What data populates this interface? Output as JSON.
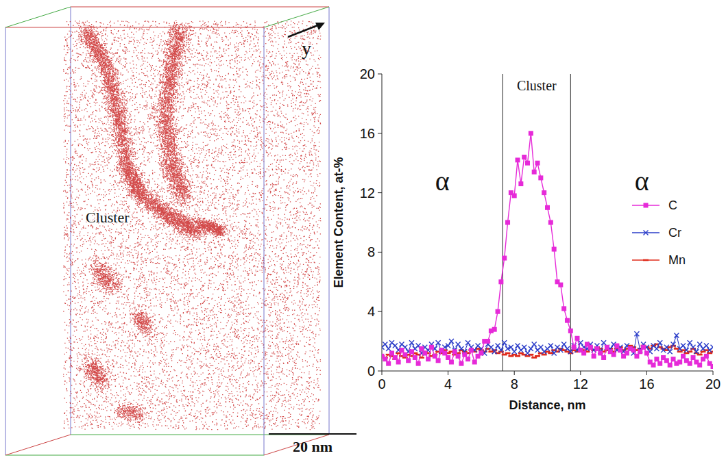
{
  "chart_data": {
    "type": "line",
    "x_label": "Distance, nm",
    "y_label": "Element Content, at-%",
    "x": [
      0,
      0.2,
      0.4,
      0.6,
      0.8,
      1,
      1.2,
      1.4,
      1.6,
      1.8,
      2,
      2.2,
      2.4,
      2.6,
      2.8,
      3,
      3.2,
      3.4,
      3.6,
      3.8,
      4,
      4.2,
      4.4,
      4.6,
      4.8,
      5,
      5.2,
      5.4,
      5.6,
      5.8,
      6,
      6.2,
      6.4,
      6.6,
      6.8,
      7,
      7.2,
      7.4,
      7.6,
      7.8,
      8,
      8.2,
      8.4,
      8.6,
      8.8,
      9,
      9.2,
      9.4,
      9.6,
      9.8,
      10,
      10.2,
      10.4,
      10.6,
      10.8,
      11,
      11.2,
      11.4,
      11.6,
      11.8,
      12,
      12.2,
      12.4,
      12.6,
      12.8,
      13,
      13.2,
      13.4,
      13.6,
      13.8,
      14,
      14.2,
      14.4,
      14.6,
      14.8,
      15,
      15.2,
      15.4,
      15.6,
      15.8,
      16,
      16.2,
      16.4,
      16.6,
      16.8,
      17,
      17.2,
      17.4,
      17.6,
      17.8,
      18,
      18.2,
      18.4,
      18.6,
      18.8,
      19,
      19.2,
      19.4,
      19.6,
      19.8,
      20
    ],
    "series": [
      {
        "name": "C",
        "color": "#e62ad8",
        "marker": "square",
        "values": [
          1.0,
          0.8,
          0.5,
          1.2,
          0.9,
          0.6,
          1.4,
          1.1,
          0.7,
          1.3,
          0.9,
          0.5,
          1.5,
          1.2,
          0.8,
          1.6,
          1.0,
          0.7,
          1.4,
          1.2,
          0.9,
          0.6,
          1.3,
          1.0,
          0.5,
          1.1,
          0.8,
          1.4,
          0.6,
          1.0,
          1.2,
          2.0,
          2.0,
          2.7,
          2.8,
          4.0,
          6.0,
          7.6,
          10.0,
          12.0,
          11.8,
          14.2,
          12.6,
          14.4,
          14.0,
          16.0,
          13.4,
          14.0,
          13.0,
          12.0,
          11.0,
          10.0,
          8.2,
          6.0,
          5.8,
          4.2,
          3.4,
          2.7,
          1.6,
          2.2,
          1.4,
          1.2,
          1.8,
          1.6,
          1.0,
          1.5,
          1.2,
          0.9,
          1.6,
          1.3,
          1.1,
          1.7,
          1.4,
          1.0,
          1.2,
          1.5,
          1.4,
          1.0,
          1.3,
          1.6,
          1.2,
          0.6,
          0.4,
          0.8,
          0.5,
          0.9,
          0.7,
          0.4,
          0.8,
          0.5,
          0.6,
          1.0,
          0.7,
          0.5,
          0.9,
          0.6,
          0.4,
          0.8,
          1.0,
          0.5,
          0.3
        ]
      },
      {
        "name": "Cr",
        "color": "#2a3cc8",
        "marker": "x",
        "values": [
          1.6,
          1.8,
          1.5,
          1.9,
          1.7,
          1.4,
          1.8,
          1.6,
          1.3,
          1.9,
          1.5,
          1.7,
          1.2,
          1.6,
          1.4,
          1.8,
          1.5,
          1.9,
          1.3,
          1.6,
          1.7,
          2.0,
          1.4,
          1.8,
          1.5,
          1.3,
          1.9,
          1.6,
          1.4,
          1.7,
          1.5,
          1.2,
          1.8,
          1.6,
          1.3,
          1.7,
          1.4,
          1.9,
          1.5,
          1.6,
          1.3,
          1.7,
          1.4,
          1.6,
          1.2,
          1.5,
          1.8,
          1.4,
          1.6,
          1.3,
          1.5,
          1.7,
          1.2,
          1.6,
          1.4,
          1.8,
          1.5,
          1.3,
          1.7,
          1.4,
          1.9,
          1.6,
          1.5,
          1.8,
          1.4,
          1.7,
          1.3,
          1.9,
          1.6,
          1.5,
          1.8,
          1.4,
          1.6,
          1.3,
          1.7,
          1.5,
          1.2,
          2.5,
          1.4,
          1.8,
          1.6,
          1.3,
          1.7,
          1.5,
          1.9,
          1.4,
          1.6,
          1.3,
          1.8,
          2.4,
          1.5,
          1.7,
          1.4,
          1.9,
          1.6,
          1.3,
          1.8,
          1.5,
          1.7,
          1.4,
          1.6
        ]
      },
      {
        "name": "Mn",
        "color": "#e02a1a",
        "marker": "dash",
        "values": [
          1.0,
          0.9,
          1.1,
          1.0,
          0.8,
          1.2,
          1.0,
          0.9,
          1.1,
          1.0,
          1.2,
          1.1,
          0.9,
          1.3,
          1.2,
          1.0,
          1.1,
          1.3,
          1.2,
          1.4,
          1.2,
          1.3,
          1.1,
          1.2,
          1.4,
          1.3,
          1.2,
          1.4,
          1.3,
          1.5,
          1.4,
          1.3,
          1.5,
          1.3,
          1.4,
          1.2,
          1.3,
          1.1,
          1.2,
          1.0,
          1.1,
          1.0,
          1.2,
          1.1,
          1.0,
          1.1,
          0.9,
          1.0,
          1.2,
          1.1,
          1.3,
          1.2,
          1.4,
          1.3,
          1.5,
          1.4,
          1.3,
          1.2,
          1.4,
          1.3,
          1.5,
          1.4,
          1.3,
          1.5,
          1.4,
          1.6,
          1.5,
          1.3,
          1.4,
          1.5,
          1.3,
          1.5,
          1.6,
          1.4,
          1.5,
          1.7,
          1.6,
          1.4,
          1.5,
          1.7,
          1.6,
          1.5,
          1.7,
          1.8,
          1.6,
          1.5,
          1.4,
          1.6,
          1.7,
          1.5,
          1.3,
          1.4,
          1.2,
          1.3,
          1.5,
          1.2,
          1.1,
          1.3,
          1.4,
          1.2,
          1.3
        ]
      }
    ],
    "xlim": [
      0,
      20
    ],
    "ylim": [
      0,
      20
    ],
    "xticks": [
      0,
      4,
      8,
      12,
      16,
      20
    ],
    "yticks": [
      0,
      4,
      8,
      12,
      16,
      20
    ],
    "grid": false,
    "legend": "right",
    "regions": [
      {
        "label": "α",
        "from": 0,
        "to": 7.3
      },
      {
        "label": "Cluster",
        "from": 7.3,
        "to": 11.4
      },
      {
        "label": "α",
        "from": 11.4,
        "to": 20
      }
    ]
  },
  "reconstruction": {
    "label": "Cluster",
    "axis_label": "y",
    "scale_bar": "20 nm"
  }
}
